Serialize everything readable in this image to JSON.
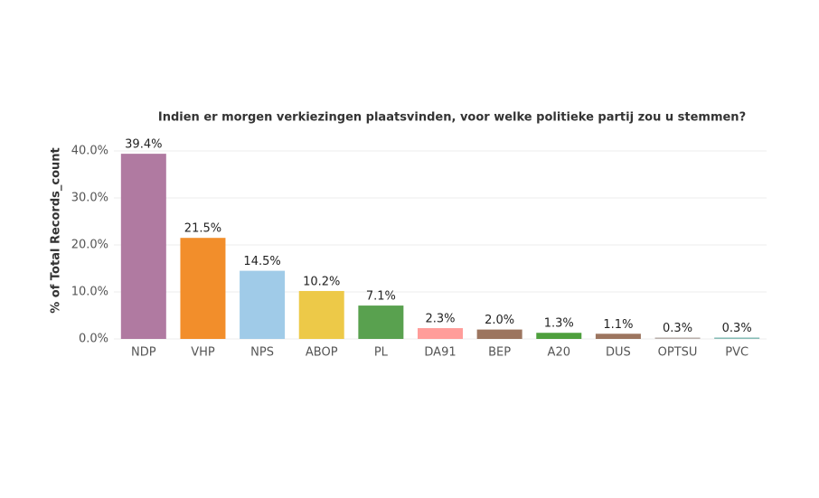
{
  "chart_data": {
    "type": "bar",
    "title": "Indien er morgen verkiezingen plaatsvinden, voor welke politieke partij zou u stemmen?",
    "y_label": "% of Total Records_count",
    "categories": [
      "NDP",
      "VHP",
      "NPS",
      "ABOP",
      "PL",
      "DA91",
      "BEP",
      "A20",
      "DUS",
      "OPTSU",
      "PVC"
    ],
    "values": [
      39.4,
      21.5,
      14.5,
      10.2,
      7.1,
      2.3,
      2.0,
      1.3,
      1.1,
      0.3,
      0.3
    ],
    "value_labels": [
      "39.4%",
      "21.5%",
      "14.5%",
      "10.2%",
      "7.1%",
      "2.3%",
      "2.0%",
      "1.3%",
      "1.1%",
      "0.3%",
      "0.3%"
    ],
    "colors": [
      "#b07aa1",
      "#f28e2b",
      "#a0cbe8",
      "#edc948",
      "#59a14f",
      "#ff9d9a",
      "#9c755f",
      "#4e9f3d",
      "#9c755f",
      "#bab0ac",
      "#86bcb6"
    ],
    "ylim": [
      0,
      43
    ],
    "yticks": [
      {
        "value": 0,
        "label": "0.0%"
      },
      {
        "value": 10,
        "label": "10.0%"
      },
      {
        "value": 20,
        "label": "20.0%"
      },
      {
        "value": 30,
        "label": "30.0%"
      },
      {
        "value": 40,
        "label": "40.0%"
      }
    ],
    "grid": true
  }
}
